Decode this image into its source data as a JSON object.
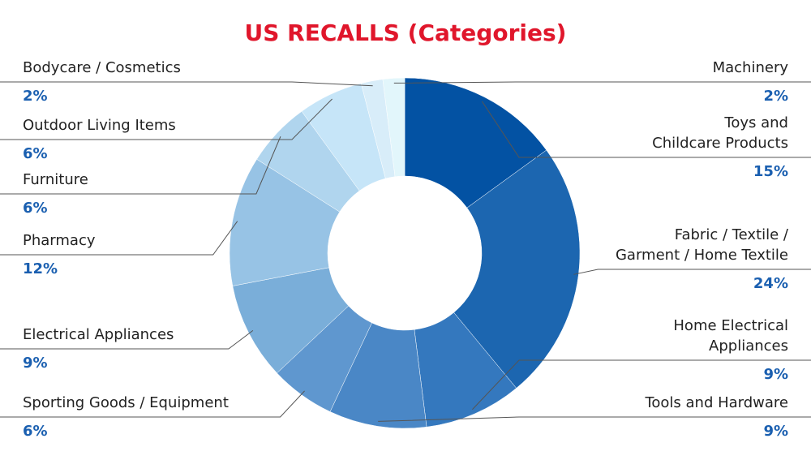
{
  "chart_data": {
    "type": "donut",
    "title": "US RECALLS (Categories)",
    "categories": [
      [
        "Toys and",
        "Childcare Products"
      ],
      [
        "Fabric / Textile /",
        "Garment / Home Textile"
      ],
      [
        "Home Electrical",
        "Appliances"
      ],
      [
        "Tools and Hardware"
      ],
      [
        "Sporting Goods / Equipment"
      ],
      [
        "Electrical Appliances"
      ],
      [
        "Pharmacy"
      ],
      [
        "Furniture"
      ],
      [
        "Outdoor Living Items"
      ],
      [
        "Bodycare / Cosmetics"
      ],
      [
        "Machinery"
      ]
    ],
    "values": [
      15,
      24,
      9,
      9,
      6,
      9,
      12,
      6,
      6,
      2,
      2
    ],
    "value_labels": [
      "15%",
      "24%",
      "9%",
      "9%",
      "6%",
      "9%",
      "12%",
      "6%",
      "6%",
      "2%",
      "2%"
    ],
    "colors": [
      "#0352a3",
      "#1c66b0",
      "#3478be",
      "#4a87c6",
      "#5f97cf",
      "#7aaed9",
      "#97c3e5",
      "#b0d5ee",
      "#c6e5f8",
      "#d8edf9",
      "#e2f6fb"
    ]
  }
}
